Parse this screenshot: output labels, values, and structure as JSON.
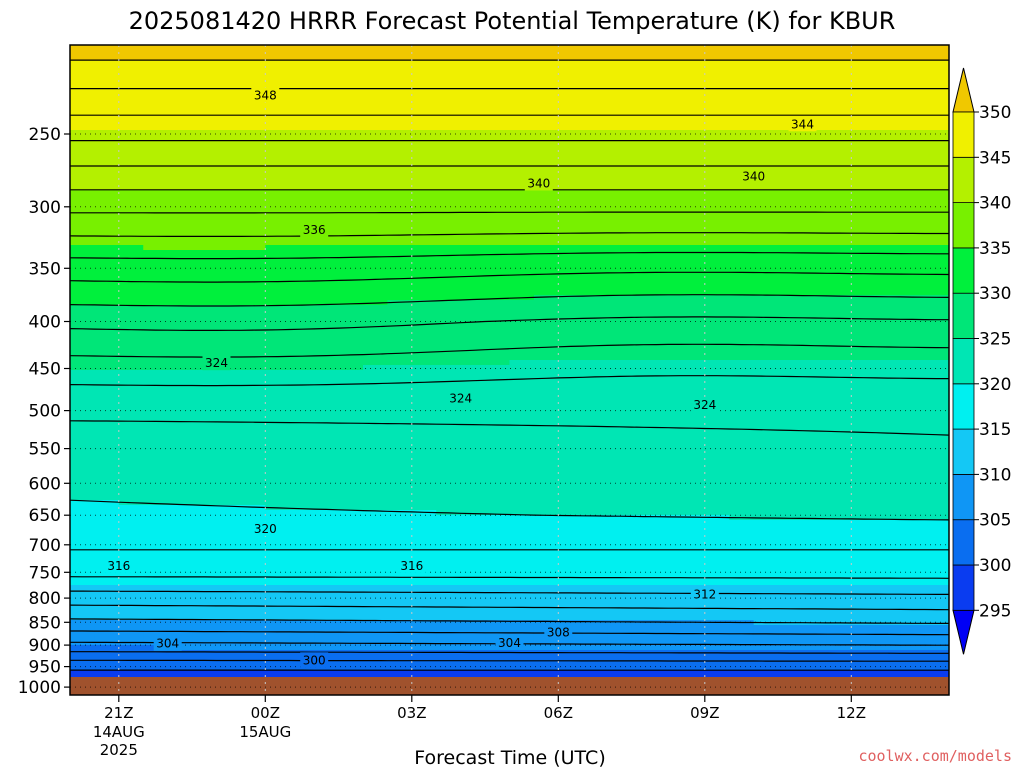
{
  "chart_data": {
    "type": "heatmap",
    "title": "2025081420 HRRR Forecast Potential Temperature (K) for KBUR",
    "xlabel": "Forecast Time (UTC)",
    "ylabel": "",
    "y_scale": "log-pressure",
    "y_ticks": [
      250,
      300,
      350,
      400,
      450,
      500,
      550,
      600,
      650,
      700,
      750,
      800,
      850,
      900,
      950,
      1000
    ],
    "y_range_hpa": [
      200,
      1020
    ],
    "x_ticks": [
      {
        "hour": 1,
        "label": "21Z",
        "sub1": "14AUG",
        "sub2": "2025"
      },
      {
        "hour": 4,
        "label": "00Z",
        "sub1": "15AUG",
        "sub2": ""
      },
      {
        "hour": 7,
        "label": "03Z",
        "sub1": "",
        "sub2": ""
      },
      {
        "hour": 10,
        "label": "06Z",
        "sub1": "",
        "sub2": ""
      },
      {
        "hour": 13,
        "label": "09Z",
        "sub1": "",
        "sub2": ""
      },
      {
        "hour": 16,
        "label": "12Z",
        "sub1": "",
        "sub2": ""
      }
    ],
    "x_range_hours": [
      0,
      18
    ],
    "grid": true,
    "surface_pressure_hpa": 975,
    "colorbar": {
      "levels": [
        295,
        300,
        305,
        310,
        315,
        320,
        325,
        330,
        335,
        340,
        345,
        350
      ],
      "colors": [
        "#0000f5",
        "#0a3cf0",
        "#0a6ef0",
        "#0f96f5",
        "#14c8f5",
        "#00f0f0",
        "#00e6b4",
        "#00e678",
        "#00f03c",
        "#78f000",
        "#b4f000",
        "#f0f000",
        "#f0c800"
      ],
      "extend": "both",
      "placement": "right"
    },
    "contour_labels": [
      {
        "value": "348",
        "hour": 4.0,
        "p": 227
      },
      {
        "value": "344",
        "hour": 15.0,
        "p": 244
      },
      {
        "value": "340",
        "hour": 9.6,
        "p": 283
      },
      {
        "value": "340",
        "hour": 14.0,
        "p": 278
      },
      {
        "value": "336",
        "hour": 5.0,
        "p": 318
      },
      {
        "value": "324",
        "hour": 3.0,
        "p": 444
      },
      {
        "value": "324",
        "hour": 8.0,
        "p": 485
      },
      {
        "value": "324",
        "hour": 13.0,
        "p": 493
      },
      {
        "value": "320",
        "hour": 4.0,
        "p": 673
      },
      {
        "value": "316",
        "hour": 1.0,
        "p": 738
      },
      {
        "value": "316",
        "hour": 7.0,
        "p": 738
      },
      {
        "value": "312",
        "hour": 13.0,
        "p": 793
      },
      {
        "value": "308",
        "hour": 10.0,
        "p": 872
      },
      {
        "value": "304",
        "hour": 2.0,
        "p": 897
      },
      {
        "value": "304",
        "hour": 9.0,
        "p": 895
      },
      {
        "value": "300",
        "hour": 5.0,
        "p": 935
      }
    ]
  },
  "credit": "coolwx.com/models"
}
